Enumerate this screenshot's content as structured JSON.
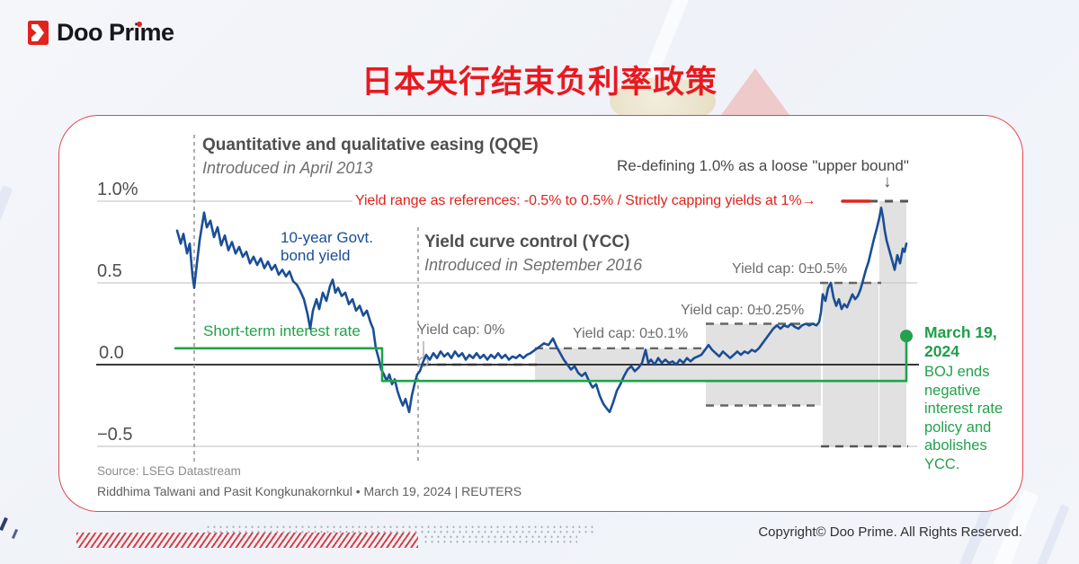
{
  "brand": {
    "name": "Doo Prime"
  },
  "header": {
    "title": "日本央行结束负利率政策"
  },
  "annotations": {
    "qqe_title": "Quantitative and qualitative easing (QQE)",
    "qqe_sub": "Introduced in April 2013",
    "ycc_title": "Yield curve control (YCC)",
    "ycc_sub": "Introduced in September 2016",
    "redefining": "Re-defining 1.0% as a loose \"upper bound\"",
    "down_arrow": "↓",
    "yield_range_note": "Yield range as references: -0.5% to 0.5% / Strictly capping yields at 1%→",
    "bond_label": "10-year Govt.\nbond yield",
    "short_term_label": "Short-term interest rate",
    "cap_0": "Yield cap: 0%",
    "cap_01": "Yield cap: 0±0.1%",
    "cap_025": "Yield cap: 0±0.25%",
    "cap_05": "Yield cap: 0±0.5%",
    "march_date": "March 19,\n2024",
    "march_body": "BOJ ends\nnegative\ninterest rate\npolicy and\nabolishes\nYCC."
  },
  "footer": {
    "source": "Source: LSEG Datastream",
    "byline": "Riddhima Talwani and Pasit Kongkunakornkul • March 19, 2024 | REUTERS",
    "copyright": "Copyright© Doo Prime. All Rights Reserved."
  },
  "colors": {
    "brand_red": "#e0231c",
    "title_red": "#e9191f",
    "bond_blue": "#1a4e96",
    "policy_green": "#21a24b",
    "band_gray": "#d9d9d9",
    "grid_gray": "#c9c9cb",
    "dash_gray": "#666666",
    "zero_black": "#1c1c1c"
  },
  "chart_data": {
    "type": "line",
    "title": "日本央行结束负利率政策",
    "ylabel": "%",
    "y_axis": {
      "ticks": [
        "1.0%",
        "0.5",
        "0.0",
        "−0.5"
      ],
      "tick_values": [
        1.0,
        0.5,
        0.0,
        -0.5
      ],
      "range": [
        -0.75,
        1.25
      ],
      "grid": true
    },
    "x_axis": {
      "tick_labels_visible": false,
      "anchors": [
        {
          "x": 216,
          "event": "QQE introduced, April 2013"
        },
        {
          "x": 465,
          "event": "YCC introduced, September 2016"
        },
        {
          "x": 1008,
          "event": "March 19, 2024 — BOJ ends negative interest rate policy and abolishes YCC"
        }
      ]
    },
    "series": [
      {
        "name": "10-year Govt. bond yield",
        "color": "#1a4e96",
        "width": 2.6,
        "points": [
          [
            197,
            0.82
          ],
          [
            201,
            0.74
          ],
          [
            204,
            0.8
          ],
          [
            208,
            0.68
          ],
          [
            211,
            0.74
          ],
          [
            214,
            0.55
          ],
          [
            216,
            0.47
          ],
          [
            219,
            0.62
          ],
          [
            222,
            0.76
          ],
          [
            227,
            0.93
          ],
          [
            230,
            0.84
          ],
          [
            234,
            0.88
          ],
          [
            238,
            0.78
          ],
          [
            242,
            0.84
          ],
          [
            246,
            0.73
          ],
          [
            250,
            0.79
          ],
          [
            254,
            0.7
          ],
          [
            258,
            0.75
          ],
          [
            262,
            0.68
          ],
          [
            266,
            0.72
          ],
          [
            270,
            0.66
          ],
          [
            274,
            0.69
          ],
          [
            278,
            0.62
          ],
          [
            282,
            0.66
          ],
          [
            286,
            0.61
          ],
          [
            290,
            0.65
          ],
          [
            294,
            0.59
          ],
          [
            298,
            0.63
          ],
          [
            302,
            0.58
          ],
          [
            306,
            0.61
          ],
          [
            310,
            0.55
          ],
          [
            314,
            0.58
          ],
          [
            318,
            0.54
          ],
          [
            322,
            0.57
          ],
          [
            326,
            0.51
          ],
          [
            330,
            0.49
          ],
          [
            334,
            0.45
          ],
          [
            338,
            0.4
          ],
          [
            342,
            0.31
          ],
          [
            345,
            0.22
          ],
          [
            348,
            0.33
          ],
          [
            352,
            0.4
          ],
          [
            355,
            0.34
          ],
          [
            359,
            0.44
          ],
          [
            363,
            0.39
          ],
          [
            367,
            0.48
          ],
          [
            370,
            0.52
          ],
          [
            373,
            0.44
          ],
          [
            376,
            0.47
          ],
          [
            380,
            0.42
          ],
          [
            384,
            0.44
          ],
          [
            388,
            0.37
          ],
          [
            392,
            0.4
          ],
          [
            396,
            0.33
          ],
          [
            400,
            0.36
          ],
          [
            404,
            0.3
          ],
          [
            408,
            0.33
          ],
          [
            412,
            0.26
          ],
          [
            415,
            0.22
          ],
          [
            418,
            0.1
          ],
          [
            421,
            0.04
          ],
          [
            424,
            -0.03
          ],
          [
            427,
            -0.06
          ],
          [
            430,
            -0.1
          ],
          [
            433,
            -0.06
          ],
          [
            436,
            -0.12
          ],
          [
            439,
            -0.09
          ],
          [
            442,
            -0.16
          ],
          [
            445,
            -0.21
          ],
          [
            448,
            -0.25
          ],
          [
            451,
            -0.21
          ],
          [
            455,
            -0.29
          ],
          [
            458,
            -0.19
          ],
          [
            461,
            -0.12
          ],
          [
            464,
            -0.06
          ],
          [
            467,
            -0.04
          ],
          [
            470,
            0.01
          ],
          [
            474,
            0.06
          ],
          [
            478,
            0.03
          ],
          [
            482,
            0.07
          ],
          [
            486,
            0.04
          ],
          [
            490,
            0.08
          ],
          [
            494,
            0.05
          ],
          [
            498,
            0.07
          ],
          [
            502,
            0.04
          ],
          [
            506,
            0.08
          ],
          [
            510,
            0.05
          ],
          [
            514,
            0.07
          ],
          [
            518,
            0.03
          ],
          [
            522,
            0.06
          ],
          [
            526,
            0.04
          ],
          [
            530,
            0.07
          ],
          [
            534,
            0.04
          ],
          [
            538,
            0.06
          ],
          [
            542,
            0.03
          ],
          [
            546,
            0.06
          ],
          [
            550,
            0.04
          ],
          [
            554,
            0.07
          ],
          [
            558,
            0.04
          ],
          [
            562,
            0.06
          ],
          [
            566,
            0.03
          ],
          [
            570,
            0.05
          ],
          [
            574,
            0.04
          ],
          [
            578,
            0.06
          ],
          [
            582,
            0.04
          ],
          [
            586,
            0.06
          ],
          [
            590,
            0.07
          ],
          [
            595,
            0.09
          ],
          [
            600,
            0.11
          ],
          [
            605,
            0.13
          ],
          [
            610,
            0.12
          ],
          [
            615,
            0.16
          ],
          [
            619,
            0.11
          ],
          [
            623,
            0.07
          ],
          [
            627,
            0.03
          ],
          [
            631,
            0.0
          ],
          [
            635,
            -0.03
          ],
          [
            639,
            -0.01
          ],
          [
            643,
            -0.05
          ],
          [
            647,
            -0.07
          ],
          [
            651,
            -0.05
          ],
          [
            655,
            -0.1
          ],
          [
            659,
            -0.14
          ],
          [
            663,
            -0.12
          ],
          [
            667,
            -0.19
          ],
          [
            671,
            -0.24
          ],
          [
            675,
            -0.27
          ],
          [
            678,
            -0.29
          ],
          [
            682,
            -0.23
          ],
          [
            686,
            -0.16
          ],
          [
            690,
            -0.12
          ],
          [
            694,
            -0.07
          ],
          [
            698,
            -0.03
          ],
          [
            702,
            -0.01
          ],
          [
            706,
            -0.04
          ],
          [
            710,
            -0.02
          ],
          [
            714,
            0.01
          ],
          [
            718,
            0.09
          ],
          [
            721,
            0.01
          ],
          [
            724,
            0.03
          ],
          [
            728,
            0.0
          ],
          [
            732,
            0.04
          ],
          [
            736,
            0.01
          ],
          [
            740,
            0.03
          ],
          [
            744,
            0.01
          ],
          [
            748,
            0.02
          ],
          [
            752,
            0.0
          ],
          [
            756,
            0.03
          ],
          [
            760,
            0.01
          ],
          [
            764,
            0.04
          ],
          [
            768,
            0.02
          ],
          [
            772,
            0.04
          ],
          [
            776,
            0.05
          ],
          [
            780,
            0.06
          ],
          [
            784,
            0.09
          ],
          [
            788,
            0.12
          ],
          [
            792,
            0.09
          ],
          [
            796,
            0.07
          ],
          [
            800,
            0.05
          ],
          [
            804,
            0.08
          ],
          [
            808,
            0.06
          ],
          [
            812,
            0.04
          ],
          [
            816,
            0.06
          ],
          [
            820,
            0.08
          ],
          [
            824,
            0.06
          ],
          [
            828,
            0.08
          ],
          [
            832,
            0.07
          ],
          [
            836,
            0.09
          ],
          [
            840,
            0.08
          ],
          [
            844,
            0.1
          ],
          [
            848,
            0.13
          ],
          [
            852,
            0.16
          ],
          [
            856,
            0.19
          ],
          [
            860,
            0.22
          ],
          [
            864,
            0.24
          ],
          [
            868,
            0.22
          ],
          [
            872,
            0.24
          ],
          [
            876,
            0.23
          ],
          [
            880,
            0.25
          ],
          [
            884,
            0.23
          ],
          [
            888,
            0.22
          ],
          [
            892,
            0.24
          ],
          [
            896,
            0.25
          ],
          [
            900,
            0.24
          ],
          [
            904,
            0.25
          ],
          [
            908,
            0.24
          ],
          [
            911,
            0.26
          ],
          [
            913,
            0.32
          ],
          [
            915,
            0.43
          ],
          [
            918,
            0.39
          ],
          [
            921,
            0.47
          ],
          [
            924,
            0.5
          ],
          [
            927,
            0.41
          ],
          [
            930,
            0.36
          ],
          [
            933,
            0.4
          ],
          [
            936,
            0.34
          ],
          [
            939,
            0.37
          ],
          [
            942,
            0.35
          ],
          [
            945,
            0.39
          ],
          [
            948,
            0.43
          ],
          [
            951,
            0.4
          ],
          [
            954,
            0.42
          ],
          [
            957,
            0.46
          ],
          [
            960,
            0.52
          ],
          [
            963,
            0.58
          ],
          [
            966,
            0.63
          ],
          [
            969,
            0.7
          ],
          [
            972,
            0.77
          ],
          [
            975,
            0.83
          ],
          [
            978,
            0.9
          ],
          [
            980,
            0.96
          ],
          [
            982,
            0.9
          ],
          [
            984,
            0.82
          ],
          [
            986,
            0.76
          ],
          [
            989,
            0.7
          ],
          [
            992,
            0.64
          ],
          [
            995,
            0.58
          ],
          [
            998,
            0.67
          ],
          [
            1001,
            0.62
          ],
          [
            1004,
            0.71
          ],
          [
            1006,
            0.69
          ],
          [
            1008,
            0.74
          ]
        ]
      },
      {
        "name": "Short-term interest rate",
        "color": "#21a24b",
        "width": 2.6,
        "end_marker": true,
        "points": [
          [
            195,
            0.1
          ],
          [
            425,
            0.1
          ],
          [
            425,
            -0.1
          ],
          [
            1008,
            -0.1
          ],
          [
            1008,
            0.175
          ]
        ]
      }
    ],
    "cap_bands": {
      "fill": "#d9d9d9",
      "rects": [
        {
          "x": [
            595,
            785
          ],
          "top": 0.1,
          "bottom": -0.1,
          "label": "Yield cap: 0±0.1%"
        },
        {
          "x": [
            785,
            913
          ],
          "top": 0.25,
          "bottom": -0.25,
          "label": "Yield cap: 0±0.25%"
        },
        {
          "x": [
            915,
            977
          ],
          "top": 0.5,
          "bottom": -0.5,
          "label": "Yield cap: 0±0.5%"
        },
        {
          "x": [
            978,
            1008
          ],
          "top": 1.0,
          "bottom": -0.5,
          "label": "1% loose upper bound"
        }
      ],
      "dashed_lines": [
        {
          "v": 0,
          "x": [
            469,
            597
          ],
          "color": "#333333",
          "width": 2.6,
          "dash": "10 7",
          "label": "Yield cap: 0%"
        },
        {
          "v": 0.1,
          "x": [
            595,
            785
          ],
          "color": "#666666",
          "width": 2.4,
          "dash": "9 7"
        },
        {
          "v": -0.1,
          "x": [
            595,
            785
          ],
          "color": "#666666",
          "width": 2.4,
          "dash": "9 7"
        },
        {
          "v": 0.25,
          "x": [
            785,
            913
          ],
          "color": "#666666",
          "width": 2.4,
          "dash": "9 7"
        },
        {
          "v": -0.25,
          "x": [
            785,
            913
          ],
          "color": "#666666",
          "width": 2.4,
          "dash": "9 7"
        },
        {
          "v": 0.5,
          "x": [
            912,
            980
          ],
          "color": "#666666",
          "width": 2.4,
          "dash": "9 7"
        },
        {
          "v": -0.5,
          "x": [
            913,
            1010
          ],
          "color": "#555555",
          "width": 2.6,
          "dash": "9 7"
        },
        {
          "v": 1.0,
          "x": [
            967,
            1012
          ],
          "color": "#555555",
          "width": 3,
          "dash": "9 8"
        }
      ]
    },
    "red_cap_segment": {
      "v": 1.0,
      "x": [
        937,
        967
      ],
      "color": "#e0231c",
      "width": 3.5
    },
    "gridlines": [
      {
        "v": 1.0,
        "x": [
          108,
          392
        ]
      },
      {
        "v": 0.5,
        "x": [
          108,
          1020
        ]
      },
      {
        "v": -0.5,
        "x": [
          108,
          1020
        ]
      }
    ],
    "zero_line": {
      "v": 0,
      "x": [
        107,
        1022
      ],
      "color": "#1c1c1c",
      "width": 1.7
    },
    "event_lines": [
      {
        "x": 216,
        "y": [
          150,
          515
        ]
      },
      {
        "x": 465,
        "y": [
          253,
          515
        ]
      }
    ],
    "cap0_callout": {
      "x": 471,
      "y1": 380,
      "y2": 397,
      "cy": 403,
      "r": 5
    }
  }
}
